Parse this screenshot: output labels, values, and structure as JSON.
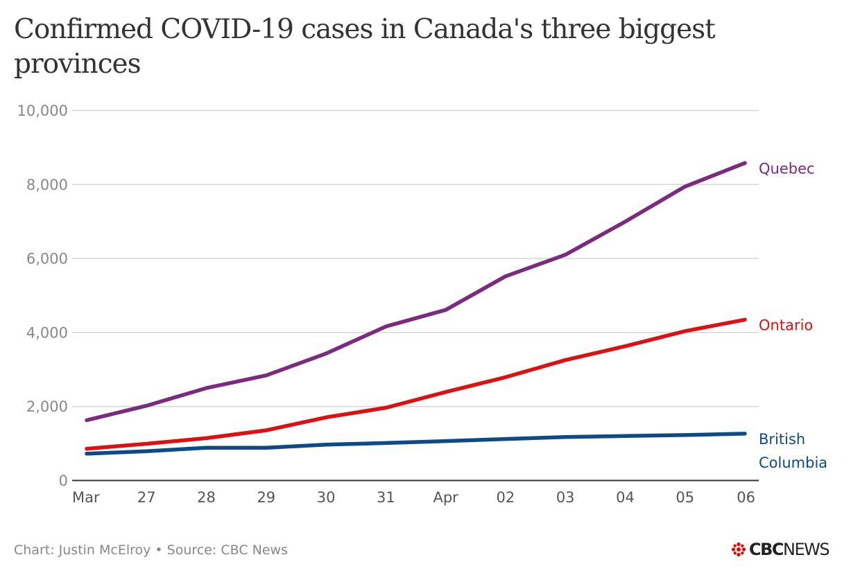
{
  "title": "Confirmed COVID-19 cases in Canada's three biggest provinces",
  "footer": {
    "credit": "Chart: Justin McElroy • Source: CBC News",
    "logo_bold": "CBC",
    "logo_light": "NEWS"
  },
  "chart_data": {
    "type": "line",
    "title": "Confirmed COVID-19 cases in Canada's three biggest provinces",
    "xlabel": "",
    "ylabel": "",
    "x": [
      "Mar",
      "27",
      "28",
      "29",
      "30",
      "31",
      "Apr",
      "02",
      "03",
      "04",
      "05",
      "06"
    ],
    "x_dates": [
      "Mar 26",
      "Mar 27",
      "Mar 28",
      "Mar 29",
      "Mar 30",
      "Mar 31",
      "Apr 01",
      "Apr 02",
      "Apr 03",
      "Apr 04",
      "Apr 05",
      "Apr 06"
    ],
    "ylim": [
      0,
      10000
    ],
    "yticks": [
      0,
      2000,
      4000,
      6000,
      8000,
      10000
    ],
    "ytick_labels": [
      "0",
      "2,000",
      "4,000",
      "6,000",
      "8,000",
      "10,000"
    ],
    "grid": true,
    "legend": "direct labels at right end of lines",
    "series": [
      {
        "name": "Quebec",
        "label_lines": [
          "Quebec"
        ],
        "color": "#7b2a7f",
        "values": [
          1629,
          2021,
          2498,
          2840,
          3430,
          4162,
          4611,
          5518,
          6101,
          6997,
          7944,
          8580
        ]
      },
      {
        "name": "Ontario",
        "label_lines": [
          "Ontario"
        ],
        "color": "#dd1111",
        "values": [
          858,
          993,
          1144,
          1355,
          1706,
          1966,
          2392,
          2793,
          3255,
          3630,
          4038,
          4347
        ]
      },
      {
        "name": "British Columbia",
        "label_lines": [
          "British",
          "Columbia"
        ],
        "color": "#0d4a8a",
        "values": [
          725,
          792,
          884,
          884,
          970,
          1013,
          1066,
          1121,
          1174,
          1203,
          1229,
          1266
        ]
      }
    ]
  }
}
